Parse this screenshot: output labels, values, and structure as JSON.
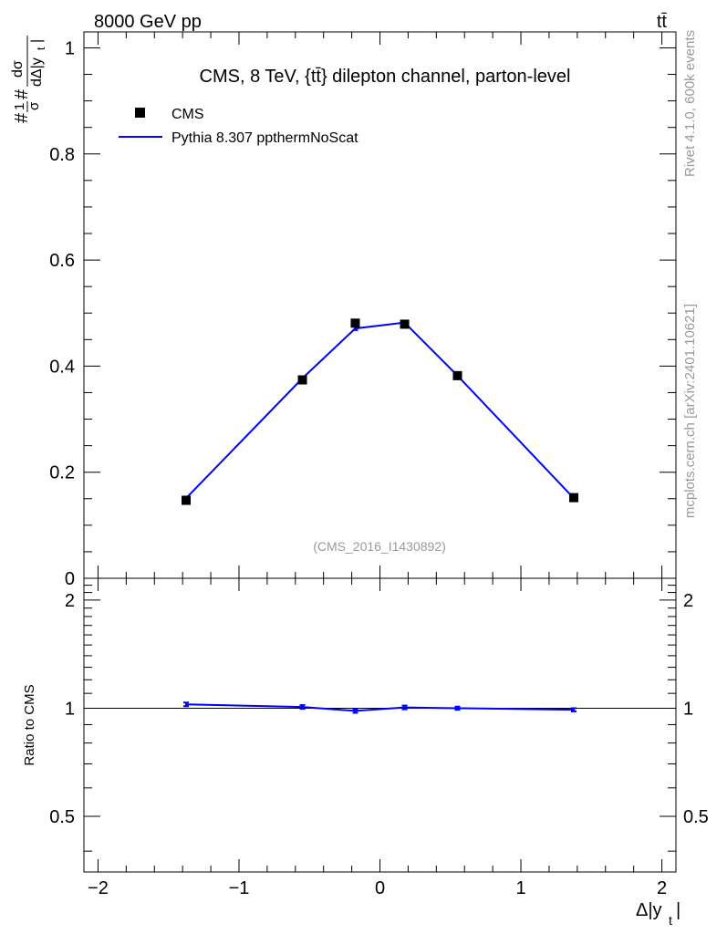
{
  "header": {
    "left": "8000 GeV pp",
    "right": "tt̄"
  },
  "side_labels": {
    "rivet": "Rivet 4.1.0,  600k events",
    "mcplots": "mcplots.cern.ch [arXiv:2401.10621]"
  },
  "colors": {
    "data": "#000000",
    "mc": "#0000ff",
    "watermark": "#999999"
  },
  "chart_data": [
    {
      "type": "scatter",
      "panel": "main",
      "title": "CMS, 8 TeV, {tt̄} dilepton channel, parton-level",
      "ylabel": "#1/σ# dσ/dΔ|y_t|",
      "ylabel_parts": {
        "prefix_top": "1",
        "prefix_bottom": "σ",
        "hashes": "#",
        "num": "dσ",
        "den": "dΔ|y",
        "den_sub": "t",
        "den_end": "|"
      },
      "watermark": "(CMS_2016_I1430892)",
      "xlim": [
        -2.1,
        2.1
      ],
      "ylim": [
        0,
        1.03
      ],
      "yticks": [
        0,
        0.2,
        0.4,
        0.6,
        0.8,
        1
      ],
      "ytick_labels": [
        "0",
        "0.2",
        "0.4",
        "0.6",
        "0.8",
        "1"
      ],
      "legend_position": "top-left",
      "series": [
        {
          "name": "CMS",
          "style": "markers",
          "x": [
            -1.375,
            -0.55,
            -0.175,
            0.175,
            0.55,
            1.375
          ],
          "y": [
            0.147,
            0.374,
            0.481,
            0.479,
            0.382,
            0.152
          ]
        },
        {
          "name": "Pythia 8.307 ppthermNoScat",
          "style": "line",
          "x": [
            -1.375,
            -0.55,
            -0.175,
            0.175,
            0.55,
            1.375
          ],
          "y": [
            0.151,
            0.377,
            0.471,
            0.482,
            0.382,
            0.151
          ],
          "yerr": [
            0.003,
            0.003,
            0.003,
            0.003,
            0.003,
            0.003
          ]
        }
      ]
    },
    {
      "type": "line",
      "panel": "ratio",
      "ylabel": "Ratio to CMS",
      "xlabel": "Δ|y_t|",
      "xlabel_parts": {
        "main": "Δ|y",
        "sub": "t",
        "end": "|"
      },
      "xlim": [
        -2.1,
        2.1
      ],
      "ylim": [
        0.35,
        2.3
      ],
      "xticks": [
        -2,
        -1,
        0,
        1,
        2
      ],
      "xtick_labels": [
        "−2",
        "−1",
        "0",
        "1",
        "2"
      ],
      "yticks": [
        0.5,
        1,
        2
      ],
      "ytick_labels": [
        "0.5",
        "1",
        "2"
      ],
      "reference": 1,
      "series": [
        {
          "name": "Pythia 8.307 ppthermNoScat",
          "x": [
            -1.375,
            -0.55,
            -0.175,
            0.175,
            0.55,
            1.375
          ],
          "y": [
            1.025,
            1.008,
            0.983,
            1.005,
            1.0,
            0.99
          ],
          "yerr": [
            0.012,
            0.012,
            0.012,
            0.012,
            0.01,
            0.01
          ]
        }
      ]
    }
  ]
}
